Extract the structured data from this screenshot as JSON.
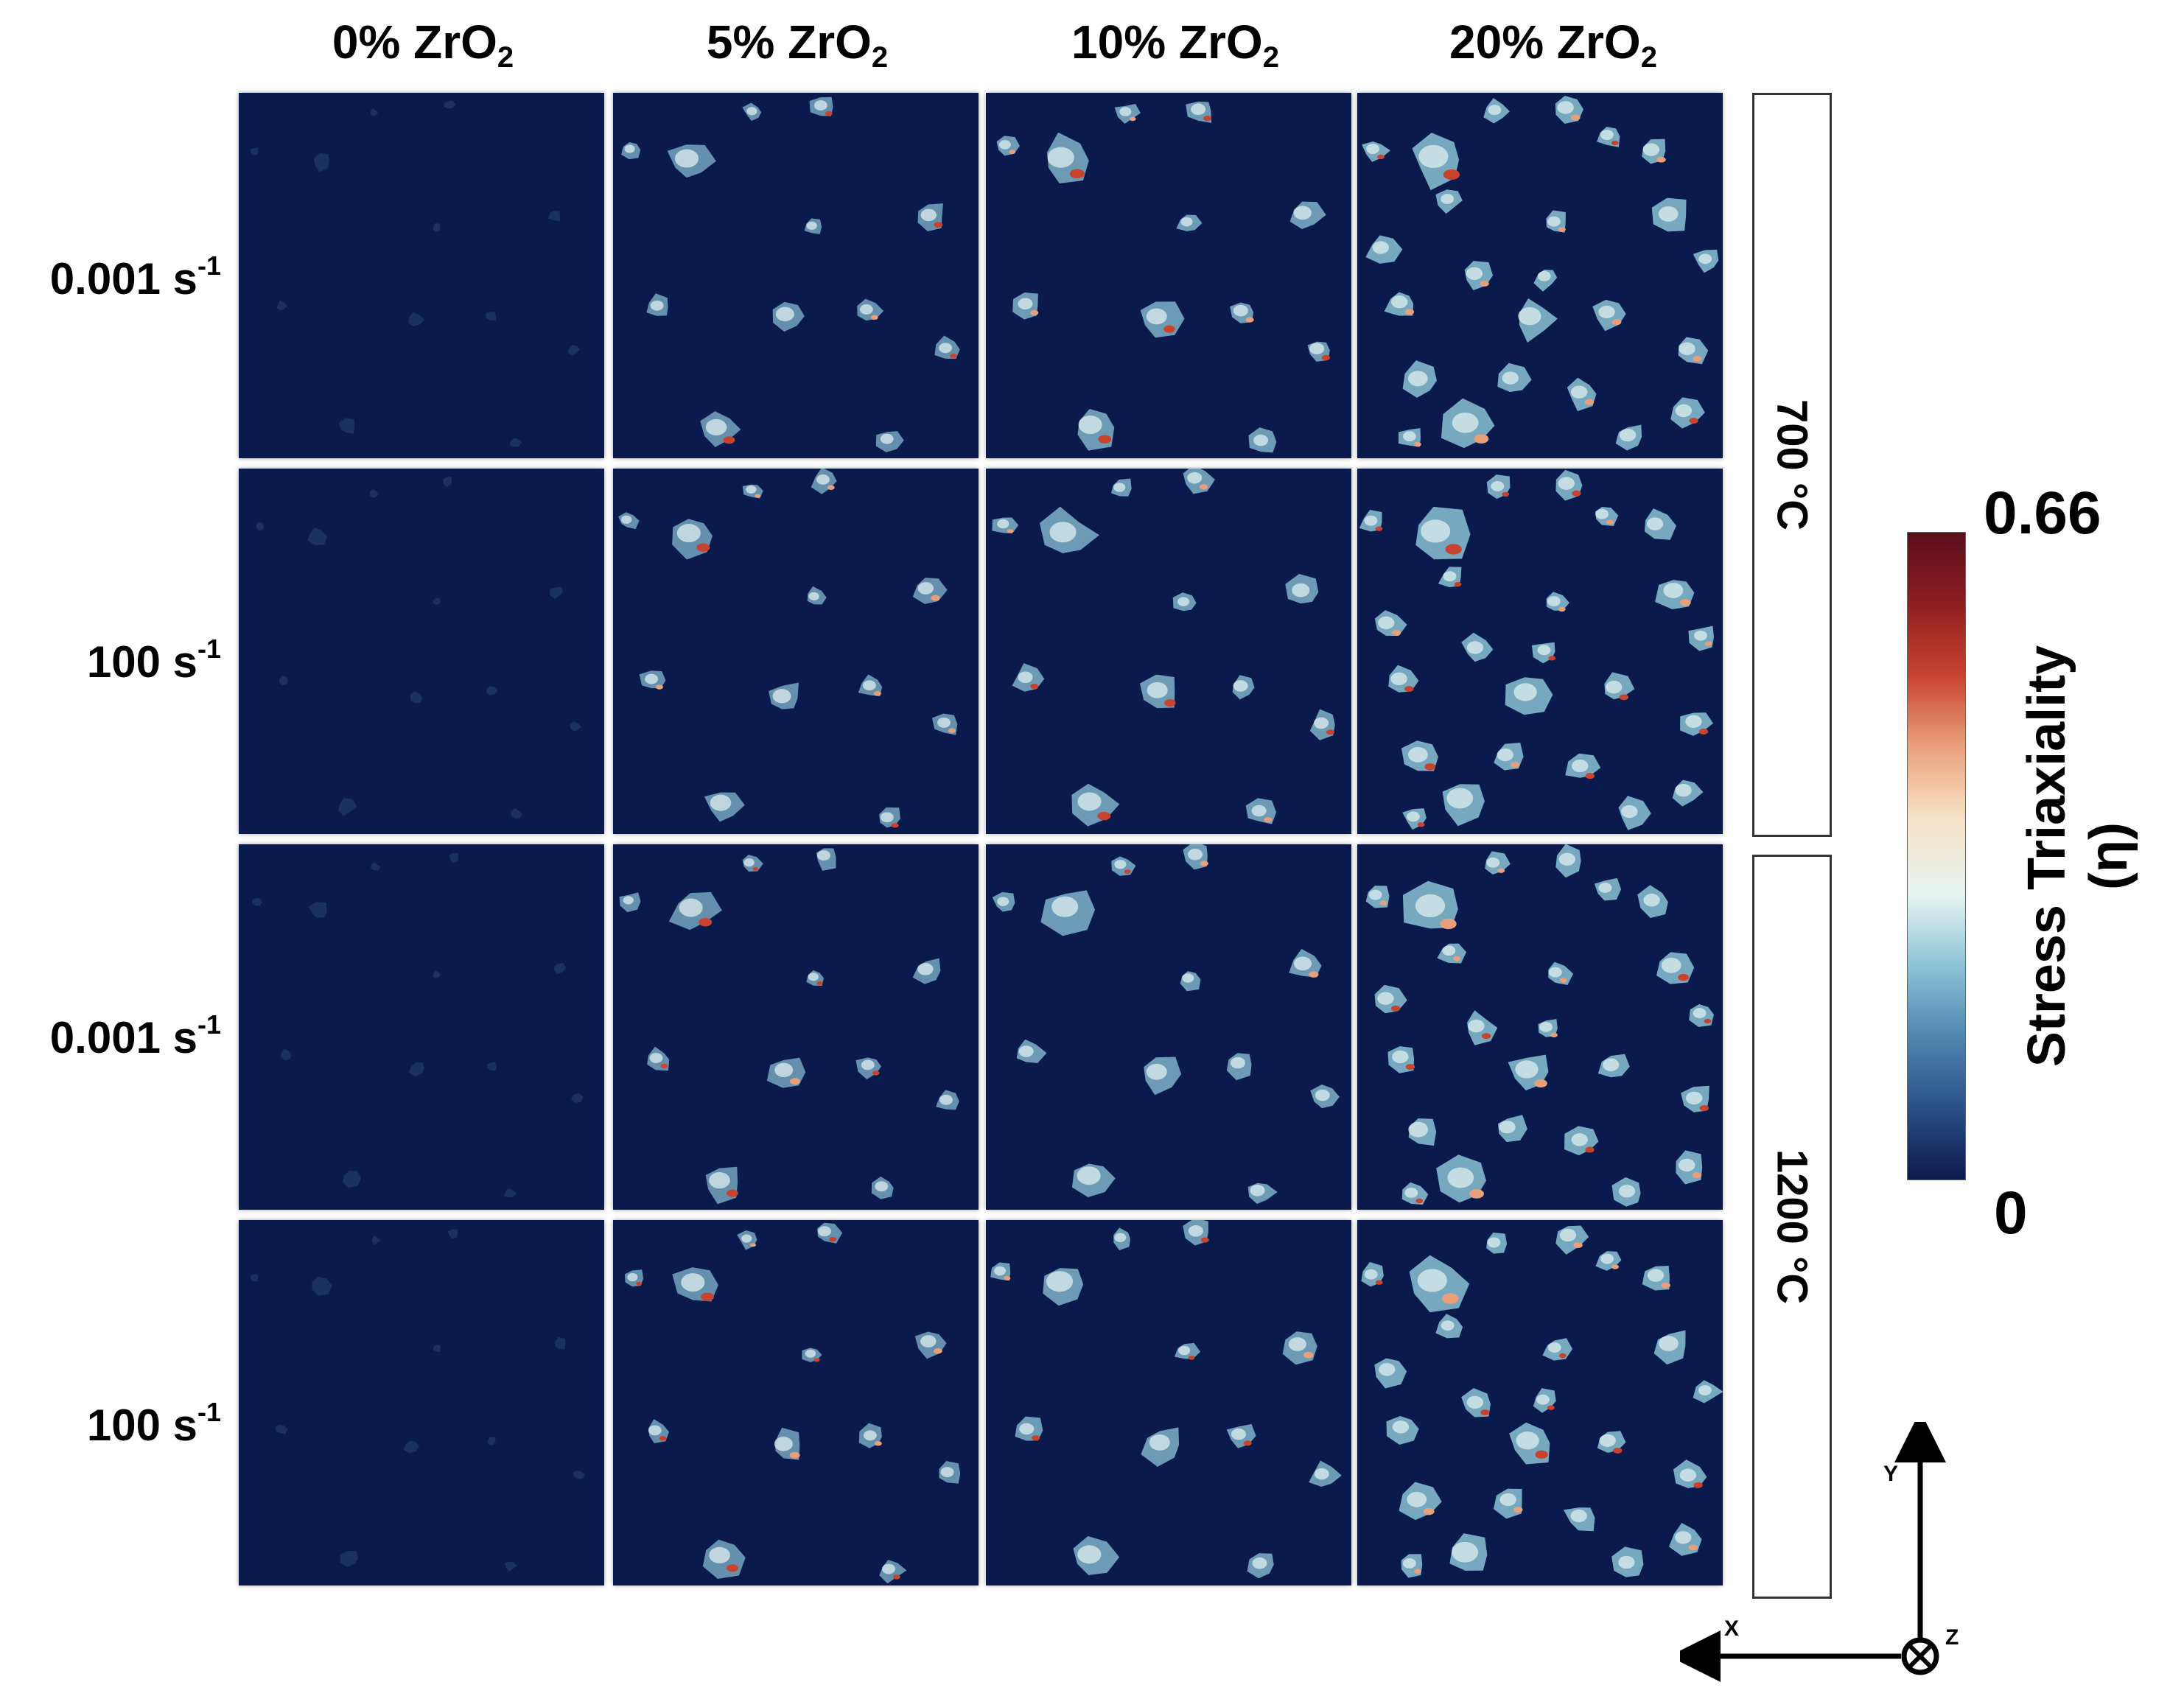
{
  "columns": [
    {
      "pct": "0% ZrO",
      "sub": "2"
    },
    {
      "pct": "5% ZrO",
      "sub": "2"
    },
    {
      "pct": "10% ZrO",
      "sub": "2"
    },
    {
      "pct": "20% ZrO",
      "sub": "2"
    }
  ],
  "rows": [
    {
      "rate": "0.001 s",
      "exp": "-1"
    },
    {
      "rate": "100 s",
      "exp": "-1"
    },
    {
      "rate": "0.001 s",
      "exp": "-1"
    },
    {
      "rate": "100 s",
      "exp": "-1"
    }
  ],
  "temperatures": [
    "700 °C",
    "1200 °C"
  ],
  "colorbar": {
    "title_line1": "Stress Triaxiality",
    "title_line2": "(η)",
    "max_label": "0.66",
    "min_label": "0",
    "max_value": 0.66,
    "min_value": 0,
    "colors": [
      "#0b1a4d",
      "#2a4f87",
      "#4f86b0",
      "#8cc3d6",
      "#e6f4f2",
      "#f7e2c7",
      "#e9a07a",
      "#c8432f",
      "#8e1d20",
      "#5a0f1c"
    ]
  },
  "axes": {
    "x": "X",
    "y": "Y",
    "z": "Z"
  },
  "panel_background": "#0b1a4d"
}
